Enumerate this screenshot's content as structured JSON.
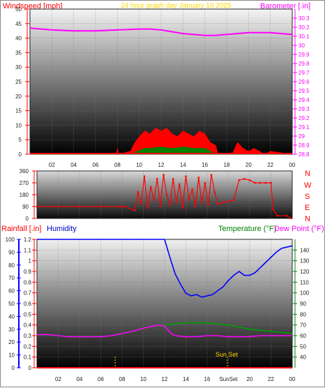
{
  "header": {
    "left_label": "Windspeed [mph]",
    "center_label": "24 hour graph day   January 10 2025",
    "right_label": "Barometer [.in]"
  },
  "humidity_header": {
    "rain_label": "Rainfall [.in]",
    "humidity_label": "Humidity",
    "temp_label": "Temperature (°F)",
    "dew_label": "Dew Point (°F)"
  },
  "compass": [
    "N",
    "W",
    "S",
    "E",
    "N"
  ],
  "sunset_label": "Sun Set",
  "colors": {
    "wind_gust": "#ff0000",
    "wind_avg": "#008000",
    "wind_low": "#0000ff",
    "barometer": "#ff00ff",
    "direction": "#ff0000",
    "humidity": "#0000ff",
    "temperature": "#00a000",
    "dewpoint": "#ff00ff",
    "rain": "#ff0000",
    "title": "#ffd700",
    "left_axis": "#ff0000",
    "baro_axis": "#ff00ff",
    "temp_axis": "#008000"
  },
  "chart_data": [
    {
      "type": "line",
      "name": "wind-barometer",
      "x_ticks": [
        "02",
        "04",
        "06",
        "08",
        "10",
        "12",
        "14",
        "16",
        "18",
        "20",
        "22",
        "00"
      ],
      "left_axis": {
        "label": "Windspeed [mph]",
        "ylim": [
          0,
          50
        ],
        "ticks": [
          "0",
          "5",
          "10",
          "15",
          "20",
          "25",
          "30",
          "35",
          "40",
          "45",
          "50"
        ]
      },
      "right_axis": {
        "label": "Barometer [.in]",
        "ylim": [
          28.8,
          30.4
        ],
        "ticks": [
          "28.8",
          "28.9",
          "29",
          "29.1",
          "29.2",
          "29.3",
          "29.4",
          "29.5",
          "29.6",
          "29.7",
          "29.8",
          "29.9",
          "30",
          "30.1",
          "30.2",
          "30.3"
        ]
      },
      "barometer": {
        "x": [
          0,
          2,
          4,
          6,
          8,
          10,
          11,
          12,
          13,
          14,
          15,
          16,
          17,
          18,
          19,
          20,
          21,
          22,
          23,
          24
        ],
        "y": [
          30.19,
          30.17,
          30.16,
          30.16,
          30.17,
          30.18,
          30.18,
          30.17,
          30.15,
          30.13,
          30.12,
          30.11,
          30.11,
          30.12,
          30.13,
          30.14,
          30.14,
          30.14,
          30.13,
          30.12
        ]
      },
      "wind_gust": {
        "x": [
          0,
          7.9,
          8,
          8.1,
          9.2,
          9.6,
          10,
          10.5,
          11,
          11.5,
          12,
          12.5,
          13,
          13.5,
          14,
          14.5,
          15,
          15.5,
          16,
          16.5,
          17,
          17.2,
          18.5,
          19,
          19.5,
          20,
          20.5,
          21,
          21.5,
          22,
          23.9
        ],
        "y": [
          0,
          0,
          2,
          0,
          1,
          4,
          6,
          8,
          7,
          9,
          8,
          9,
          7,
          6,
          8,
          7,
          6,
          8,
          7,
          4,
          3,
          0,
          0,
          4,
          2,
          1,
          2,
          1,
          0,
          1,
          0
        ]
      },
      "wind_avg": {
        "x": [
          0,
          9.2,
          9.8,
          10.5,
          11,
          12,
          13,
          14,
          15,
          16,
          16.5,
          17.2,
          23.9
        ],
        "y": [
          0,
          0,
          1,
          2,
          2,
          2.5,
          2,
          2.5,
          2,
          2,
          1,
          0,
          0
        ]
      },
      "wind_low": {
        "x": [
          0,
          9.2,
          10,
          11,
          12,
          13,
          14,
          15,
          16,
          17.2,
          23.9
        ],
        "y": [
          0,
          0,
          1,
          1.5,
          1.5,
          1.5,
          2,
          1.5,
          1,
          0,
          0
        ]
      }
    },
    {
      "type": "scatter",
      "name": "wind-direction",
      "y_ticks": [
        "0",
        "90",
        "180",
        "270",
        "360"
      ],
      "ylim": [
        0,
        360
      ],
      "x": [
        0,
        2,
        4,
        6,
        7.9,
        8.2,
        9.2,
        9.5,
        9.8,
        10.1,
        10.4,
        10.7,
        11,
        11.3,
        11.6,
        11.9,
        12.2,
        12.5,
        12.8,
        13.1,
        13.4,
        13.7,
        14,
        14.3,
        14.6,
        14.9,
        15.2,
        15.5,
        15.8,
        16.1,
        16.4,
        16.7,
        17,
        17.5,
        18,
        18.5,
        19,
        19.5,
        20,
        20.5,
        21,
        21.5,
        22,
        22.2,
        22.6,
        23.5,
        23.9
      ],
      "y": [
        90,
        90,
        90,
        90,
        90,
        90,
        60,
        200,
        110,
        320,
        80,
        240,
        140,
        300,
        90,
        330,
        180,
        100,
        300,
        120,
        260,
        80,
        320,
        140,
        220,
        90,
        310,
        120,
        270,
        100,
        330,
        200,
        110,
        120,
        130,
        140,
        290,
        300,
        290,
        270,
        270,
        270,
        270,
        70,
        20,
        20,
        0
      ]
    },
    {
      "type": "line",
      "name": "rain-humidity-temperature",
      "x_ticks": [
        "02",
        "04",
        "06",
        "08",
        "10",
        "12",
        "14",
        "16",
        "SunSet",
        "20",
        "22",
        "00"
      ],
      "left_axis": {
        "label": "Rainfall [.in]",
        "ylim": [
          0,
          1.2
        ],
        "ticks": [
          "0",
          "0.1",
          "0.2",
          "0.3",
          "0.4",
          "0.5",
          "0.6",
          "0.7",
          "0.8",
          "0.9",
          "1",
          "1.1",
          "1.2"
        ]
      },
      "humidity_axis": {
        "label": "Humidity",
        "ylim": [
          0,
          100
        ],
        "ticks": [
          "0",
          "10",
          "20",
          "30",
          "40",
          "50",
          "60",
          "70",
          "80",
          "90",
          "100"
        ]
      },
      "right_axis": {
        "label": "Temperature (°F)",
        "ylim": [
          30,
          150
        ],
        "ticks": [
          "40",
          "50",
          "60",
          "70",
          "80",
          "90",
          "100",
          "110",
          "120",
          "130",
          "140"
        ]
      },
      "humidity": {
        "x": [
          0,
          2,
          4,
          6,
          8,
          10,
          11,
          12,
          12.5,
          13,
          13.5,
          14,
          14.5,
          15,
          15.5,
          16,
          16.5,
          17,
          17.5,
          18,
          18.5,
          19,
          19.5,
          20,
          20.5,
          21,
          21.5,
          22,
          22.5,
          23,
          23.5,
          24
        ],
        "y": [
          100,
          100,
          100,
          100,
          100,
          100,
          100,
          100,
          86,
          73,
          65,
          58,
          56,
          57,
          55,
          56,
          57,
          60,
          63,
          68,
          72,
          75,
          72,
          72,
          74,
          78,
          82,
          86,
          90,
          93,
          94,
          95
        ]
      },
      "temperature": {
        "x": [
          0,
          1,
          2,
          3,
          4,
          5,
          6,
          7,
          8,
          9,
          10,
          11,
          12,
          13,
          14,
          15,
          16,
          17,
          18,
          19,
          20,
          21,
          22,
          23,
          24
        ],
        "y": [
          61,
          61,
          60,
          59,
          59,
          59,
          59,
          60,
          62,
          64,
          67,
          69,
          70,
          71,
          72,
          72,
          72,
          71,
          70,
          68,
          66,
          65,
          64,
          63,
          62
        ]
      },
      "dewpoint": {
        "x": [
          0,
          1,
          2,
          3,
          4,
          5,
          6,
          7,
          8,
          9,
          10,
          11,
          11.5,
          12,
          12.5,
          13,
          14,
          15,
          16,
          17,
          18,
          19,
          20,
          21,
          22,
          23,
          24
        ],
        "y": [
          61,
          61,
          60,
          59,
          59,
          59,
          59,
          60,
          62,
          64,
          67,
          69,
          70,
          69,
          63,
          60,
          59,
          59,
          60,
          60,
          59,
          59,
          59,
          60,
          60,
          60,
          60
        ]
      },
      "rain": {
        "x": [
          0,
          24
        ],
        "y": [
          0,
          0
        ]
      },
      "markers": {
        "x": [
          7.35,
          17.9
        ]
      }
    }
  ]
}
